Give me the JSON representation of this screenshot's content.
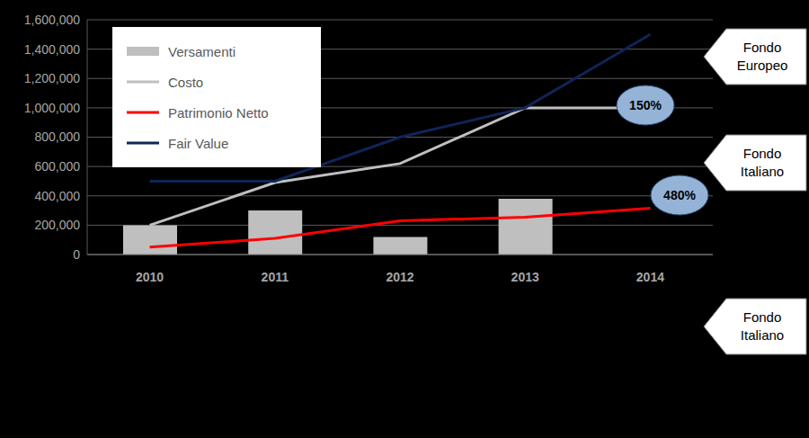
{
  "chart_data": {
    "type": "combo",
    "categories": [
      "2010",
      "2011",
      "2012",
      "2013",
      "2014"
    ],
    "series": [
      {
        "name": "Versamenti",
        "type": "bar",
        "color": "#bfbfbf",
        "values": [
          200000,
          300000,
          120000,
          380000,
          null
        ]
      },
      {
        "name": "Costo",
        "type": "line",
        "color": "#bfbfbf",
        "values": [
          200000,
          490000,
          620000,
          1000000,
          1000000
        ]
      },
      {
        "name": "Patrimonio Netto",
        "type": "line",
        "color": "#ff0000",
        "values": [
          50000,
          110000,
          230000,
          255000,
          315000
        ]
      },
      {
        "name": "Fair Value",
        "type": "line",
        "color": "#0f2557",
        "values": [
          500000,
          500000,
          800000,
          1000000,
          1500000
        ]
      }
    ],
    "ylim": [
      0,
      1600000
    ],
    "yticks": [
      0,
      {
        "value": 200000,
        "label": "200,000"
      },
      {
        "value": 400000,
        "label": "400,000"
      },
      {
        "value": 600000,
        "label": "600,000"
      },
      {
        "value": 800000,
        "label": "800,000"
      },
      {
        "value": 1000000,
        "label": "1,000,000"
      },
      {
        "value": 1200000,
        "label": "1,200,000"
      },
      {
        "value": 1400000,
        "label": "1,400,000"
      },
      {
        "value": 1600000,
        "label": "1,600,000"
      }
    ],
    "grid": true,
    "legend": "upper left",
    "annotations": [
      "150%",
      "480%"
    ],
    "callouts": [
      "Fondo Europeo",
      "Fondo Italiano",
      "Fondo Italiano"
    ]
  }
}
